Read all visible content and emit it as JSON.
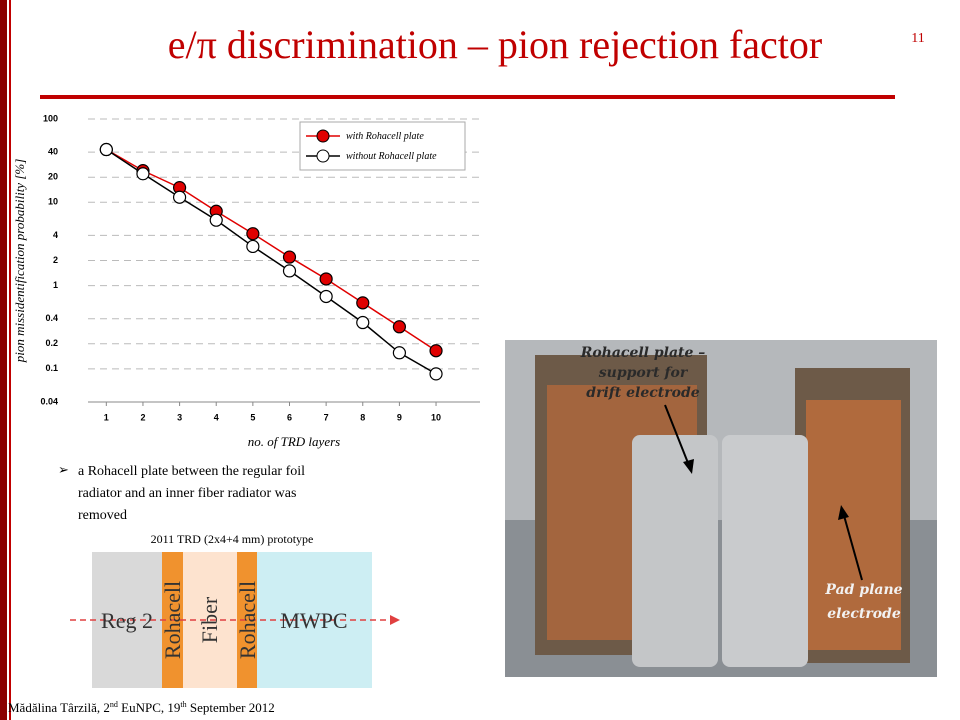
{
  "title": "e/π discrimination – pion rejection factor",
  "page_number": "11",
  "chart_data": {
    "type": "line",
    "y_label": "pion missidentification probability [%]",
    "x_label": "no. of TRD layers",
    "x": [
      1,
      2,
      3,
      4,
      5,
      6,
      7,
      8,
      9,
      10
    ],
    "series": [
      {
        "name": "with Rohacell plate",
        "color": "#e00000",
        "marker": "filled",
        "values": [
          43,
          24,
          15,
          7.8,
          4.2,
          2.2,
          1.2,
          0.62,
          0.32,
          0.165
        ]
      },
      {
        "name": "without Rohacell plate",
        "color": "#000000",
        "marker": "open",
        "values": [
          43,
          22,
          11.5,
          6.1,
          2.95,
          1.5,
          0.74,
          0.36,
          0.156,
          0.087
        ]
      }
    ],
    "xlim": [
      0.5,
      11.2
    ],
    "ylim": [
      0.04,
      100
    ],
    "xticks": [
      1,
      2,
      3,
      4,
      5,
      6,
      7,
      8,
      9,
      10
    ],
    "yticks": [
      0.04,
      0.1,
      0.2,
      0.4,
      1,
      2,
      4,
      10,
      20,
      40,
      100
    ],
    "log_y": true,
    "grid": true,
    "legend": "upper right"
  },
  "bullet": [
    "a Rohacell plate between the regular foil",
    "radiator and an inner fiber radiator was",
    "removed"
  ],
  "diagram": {
    "caption": "2011 TRD (2x4+4 mm) prototype",
    "blocks": [
      "Reg 2",
      "Rohacell",
      "Fiber",
      "Rohacell",
      "MWPC"
    ]
  },
  "photo": {
    "label_plate": [
      "Rohacell plate –",
      "support for",
      "drift electrode"
    ],
    "label_pad": [
      "Pad plane",
      "electrode"
    ]
  },
  "footer": [
    "Mădălina Târzilă, 2",
    "nd",
    " EuNPC, 19",
    "th",
    " September 2012"
  ]
}
